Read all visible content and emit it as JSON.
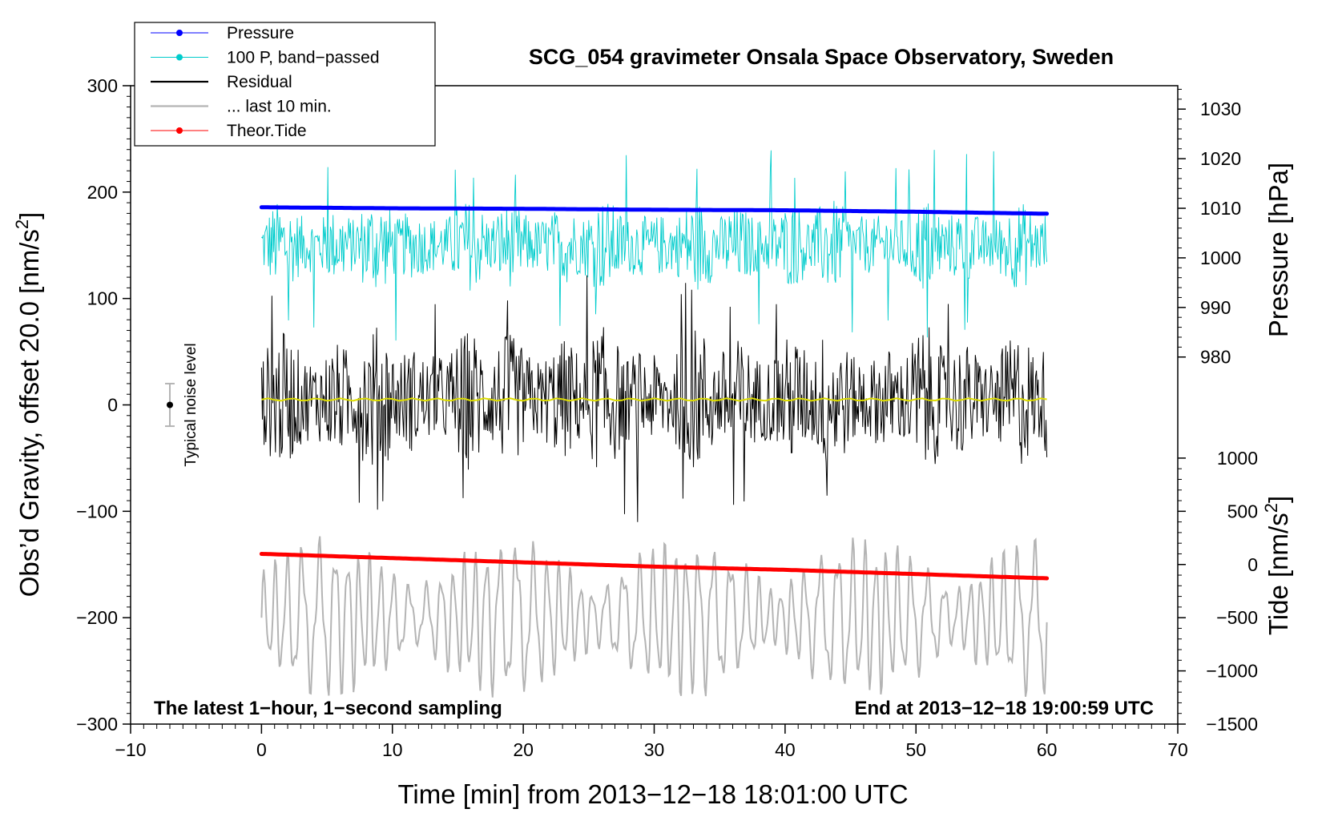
{
  "chart_data": {
    "type": "line",
    "title": "SCG_054 gravimeter Onsala Space Observatory, Sweden",
    "xlabel": "Time [min] from 2013−12−18 18:01:00 UTC",
    "ylabel_left": "Obs’d Gravity, offset 20.0 [nm/s²]",
    "ylabel_left_main": "Obs’d Gravity, offset 20.0 [nm/s",
    "ylabel_right_pressure": "Pressure [hPa]",
    "ylabel_right_tide": "Tide [nm/s",
    "units_sup": "2",
    "units_close": "]",
    "xlim": [
      -10,
      70
    ],
    "ylim_left": [
      -300,
      300
    ],
    "x_ticks": [
      -10,
      0,
      10,
      20,
      30,
      40,
      50,
      60,
      70
    ],
    "x_tick_labels": [
      "−10",
      "0",
      "10",
      "20",
      "30",
      "40",
      "50",
      "60",
      "70"
    ],
    "y_ticks_left": [
      -300,
      -200,
      -100,
      0,
      100,
      200,
      300
    ],
    "y_tick_labels_left": [
      "−300",
      "−200",
      "−100",
      "0",
      "100",
      "200",
      "300"
    ],
    "pressure_axis": {
      "ticks": [
        980,
        990,
        1000,
        1010,
        1020,
        1030
      ],
      "tick_labels": [
        "980",
        "990",
        "1000",
        "1010",
        "1020",
        "1030"
      ],
      "map": {
        "value_a": 980,
        "gravity_a": 45,
        "value_b": 1030,
        "gravity_b": 278
      }
    },
    "tide_axis": {
      "ticks": [
        -1500,
        -1000,
        -500,
        0,
        500,
        1000
      ],
      "tick_labels": [
        "−1500",
        "−1000",
        "−500",
        "0",
        "500",
        "1000"
      ],
      "map": {
        "value_a": -1500,
        "gravity_a": -300,
        "value_b": 1000,
        "gravity_b": -50
      }
    },
    "series": [
      {
        "name": "Pressure",
        "color": "#0000ff",
        "kind": "line-dots",
        "x": [
          0,
          10,
          20,
          30,
          40,
          50,
          60
        ],
        "y": [
          1010.2,
          1010.0,
          1009.9,
          1009.7,
          1009.6,
          1009.3,
          1008.9
        ]
      },
      {
        "name": "100 P, band−passed",
        "color": "#00cccc",
        "kind": "noise",
        "center": 150,
        "amplitude": 45,
        "spike": 90,
        "x_range": [
          0,
          60
        ]
      },
      {
        "name": "Residual",
        "color": "#000000",
        "kind": "noise",
        "center": 5,
        "amplitude": 70,
        "spike": 120,
        "x_range": [
          0,
          60
        ]
      },
      {
        "name": "... last 10 min.",
        "color": "#b4b4b4",
        "kind": "wave",
        "center": -200,
        "amplitude": 60,
        "spike": 100,
        "x_range": [
          0,
          60
        ]
      },
      {
        "name": "Theor.Tide",
        "color": "#ff0000",
        "kind": "line-dots",
        "x": [
          0,
          10,
          20,
          30,
          40,
          50,
          60
        ],
        "y": [
          -140,
          -144,
          -148,
          -152,
          -155,
          -159,
          -163
        ]
      },
      {
        "name": "yellow mean",
        "color": "#dddd00",
        "kind": "flat",
        "legend": false,
        "x": [
          0,
          60
        ],
        "y": [
          5,
          5
        ]
      }
    ],
    "noise_level": {
      "label": "Typical noise level",
      "x": -7,
      "center": 0,
      "half_range": 20
    },
    "annotations": {
      "bottom_left": "The latest 1−hour, 1−second sampling",
      "bottom_right": "End at 2013−12−18 19:00:59 UTC"
    },
    "legend_position": "top-left"
  },
  "colors": {
    "axis": "#000000",
    "background": "#ffffff",
    "legend_border": "#000000"
  }
}
